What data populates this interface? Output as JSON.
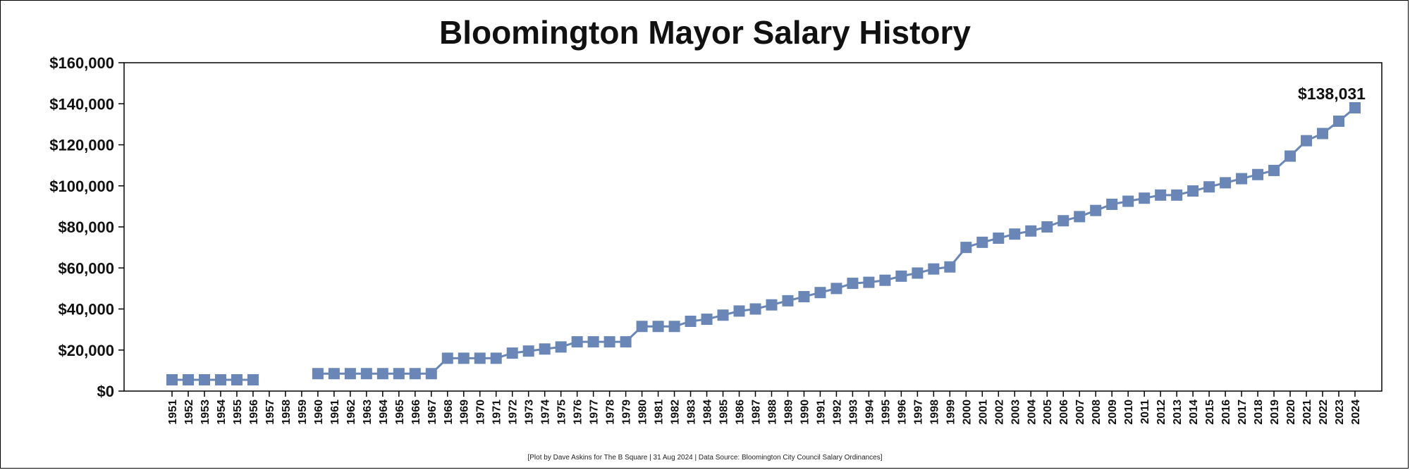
{
  "chart_data": {
    "type": "line",
    "title": "Bloomington Mayor Salary History",
    "xlabel": "",
    "ylabel": "",
    "ylim": [
      0,
      160000
    ],
    "yticks": [
      0,
      20000,
      40000,
      60000,
      80000,
      100000,
      120000,
      140000,
      160000
    ],
    "ytick_labels": [
      "$0",
      "$20,000",
      "$40,000",
      "$60,000",
      "$80,000",
      "$100,000",
      "$120,000",
      "$140,000",
      "$160,000"
    ],
    "grid": false,
    "legend": "none",
    "line_color": "#6a86b6",
    "marker": "square",
    "categories": [
      "1951",
      "1952",
      "1953",
      "1954",
      "1955",
      "1956",
      "1957",
      "1958",
      "1959",
      "1960",
      "1961",
      "1962",
      "1963",
      "1964",
      "1965",
      "1966",
      "1967",
      "1968",
      "1969",
      "1970",
      "1971",
      "1972",
      "1973",
      "1974",
      "1975",
      "1976",
      "1977",
      "1978",
      "1979",
      "1980",
      "1981",
      "1982",
      "1983",
      "1984",
      "1985",
      "1986",
      "1987",
      "1988",
      "1989",
      "1990",
      "1991",
      "1992",
      "1993",
      "1994",
      "1995",
      "1996",
      "1997",
      "1998",
      "1999",
      "2000",
      "2001",
      "2002",
      "2003",
      "2004",
      "2005",
      "2006",
      "2007",
      "2008",
      "2009",
      "2010",
      "2011",
      "2012",
      "2013",
      "2014",
      "2015",
      "2016",
      "2017",
      "2018",
      "2019",
      "2020",
      "2021",
      "2022",
      "2023",
      "2024"
    ],
    "values": [
      5500,
      5500,
      5500,
      5500,
      5500,
      5500,
      null,
      null,
      null,
      8500,
      8500,
      8500,
      8500,
      8500,
      8500,
      8500,
      8500,
      16000,
      16000,
      16000,
      16000,
      18500,
      19500,
      20500,
      21500,
      24000,
      24000,
      24000,
      24000,
      31500,
      31500,
      31500,
      34000,
      35000,
      37000,
      39000,
      40000,
      42000,
      44000,
      46000,
      48000,
      50000,
      52500,
      53000,
      54000,
      56000,
      57500,
      59500,
      60500,
      70000,
      72500,
      74500,
      76500,
      78000,
      80000,
      83000,
      85000,
      88000,
      91000,
      92500,
      94000,
      95500,
      95500,
      97500,
      99500,
      101500,
      103500,
      105500,
      107500,
      114500,
      122000,
      125500,
      131500,
      138031
    ],
    "annotations": [
      {
        "x": "2024",
        "text": "$138,031"
      }
    ]
  },
  "footer": "[Plot by Dave Askins for The B Square | 31 Aug 2024 | Data Source: Bloomington City Council Salary Ordinances]"
}
